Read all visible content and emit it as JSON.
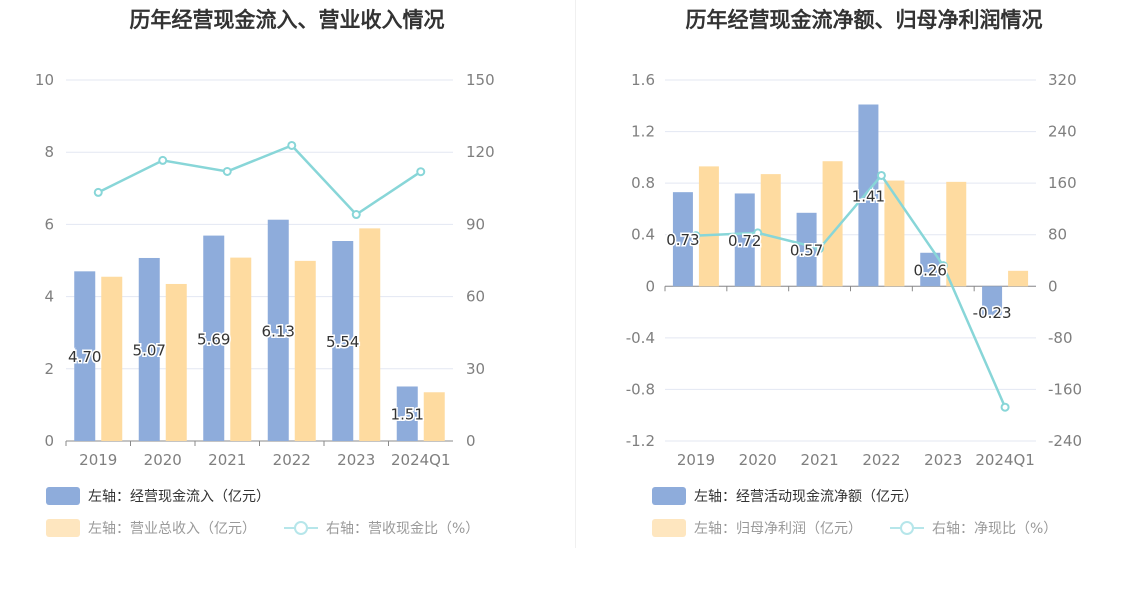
{
  "chart_data": [
    {
      "type": "bar",
      "title": "历年经营现金流入、营业收入情况",
      "categories": [
        "2019",
        "2020",
        "2021",
        "2022",
        "2023",
        "2024Q1"
      ],
      "left_axis": {
        "ticks": [
          "0",
          "2",
          "4",
          "6",
          "8",
          "10"
        ],
        "ylim": [
          0,
          10
        ]
      },
      "right_axis": {
        "ticks": [
          "0",
          "30",
          "60",
          "90",
          "120",
          "150"
        ],
        "ylim": [
          0,
          150
        ]
      },
      "series": [
        {
          "name": "左轴：经营现金流入（亿元）",
          "type": "bar",
          "axis": "left",
          "color": "#8eacdb",
          "values": [
            4.7,
            5.07,
            5.69,
            6.13,
            5.54,
            1.51
          ],
          "labels": [
            "4.70",
            "5.07",
            "5.69",
            "6.13",
            "5.54",
            "1.51"
          ]
        },
        {
          "name": "左轴：营业总收入（亿元）",
          "type": "bar",
          "axis": "left",
          "color": "#fedba0",
          "values": [
            4.55,
            4.35,
            5.08,
            4.99,
            5.89,
            1.35
          ]
        },
        {
          "name": "右轴：营收现金比（%）",
          "type": "line",
          "axis": "right",
          "color": "#88d6d8",
          "values": [
            103.3,
            116.6,
            112.0,
            122.8,
            94.1,
            111.9
          ]
        }
      ],
      "grid": true,
      "legend": "bottom-left"
    },
    {
      "type": "bar",
      "title": "历年经营现金流净额、归母净利润情况",
      "categories": [
        "2019",
        "2020",
        "2021",
        "2022",
        "2023",
        "2024Q1"
      ],
      "left_axis": {
        "ticks": [
          "-1.2",
          "-0.8",
          "-0.4",
          "0",
          "0.4",
          "0.8",
          "1.2",
          "1.6"
        ],
        "ylim": [
          -1.2,
          1.6
        ]
      },
      "right_axis": {
        "ticks": [
          "-240",
          "-160",
          "-80",
          "0",
          "80",
          "160",
          "240",
          "320"
        ],
        "ylim": [
          -240,
          320
        ]
      },
      "series": [
        {
          "name": "左轴：经营活动现金流净额（亿元）",
          "type": "bar",
          "axis": "left",
          "color": "#8eacdb",
          "values": [
            0.73,
            0.72,
            0.57,
            1.41,
            0.26,
            -0.23
          ],
          "labels": [
            "0.73",
            "0.72",
            "0.57",
            "1.41",
            "0.26",
            "-0.23"
          ]
        },
        {
          "name": "左轴：归母净利润（亿元）",
          "type": "bar",
          "axis": "left",
          "color": "#fedba0",
          "values": [
            0.93,
            0.87,
            0.97,
            0.82,
            0.81,
            0.12
          ]
        },
        {
          "name": "右轴：净现比（%）",
          "type": "line",
          "axis": "right",
          "color": "#88d6d8",
          "values": [
            78.5,
            82.8,
            58.8,
            171.9,
            32.1,
            -187.6
          ]
        }
      ],
      "grid": true,
      "legend": "bottom-left"
    }
  ]
}
